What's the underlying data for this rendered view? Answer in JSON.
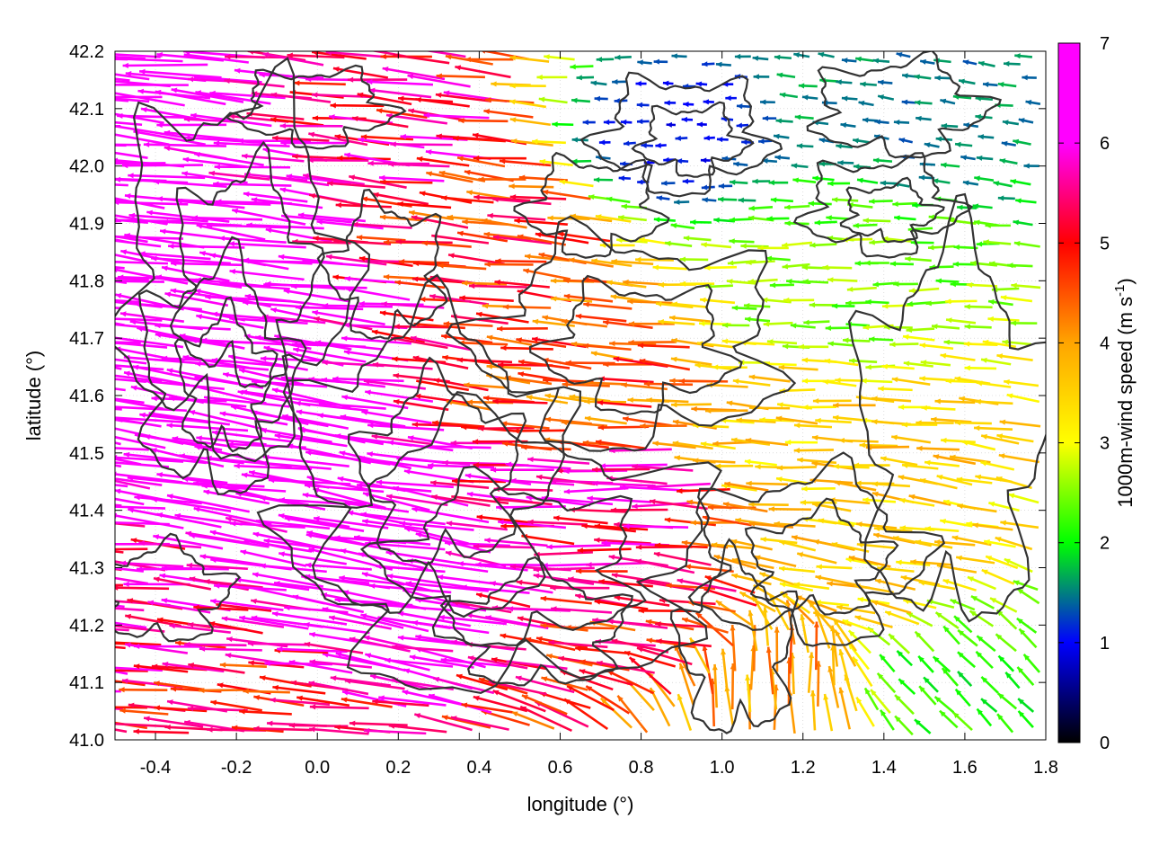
{
  "chart_data": {
    "type": "vector-field",
    "xlabel": "longitude (°)",
    "ylabel": "latitude (°)",
    "xlim": [
      -0.5,
      1.8
    ],
    "ylim": [
      41.0,
      42.2
    ],
    "x_ticks": [
      -0.4,
      -0.2,
      0.0,
      0.2,
      0.4,
      0.6,
      0.8,
      1.0,
      1.2,
      1.4,
      1.6,
      1.8
    ],
    "x_tick_labels": [
      "-0.4",
      "-0.2",
      "0.0",
      "0.2",
      "0.4",
      "0.6",
      "0.8",
      "1.0",
      "1.2",
      "1.4",
      "1.6",
      "1.8"
    ],
    "y_ticks": [
      41.0,
      41.1,
      41.2,
      41.3,
      41.4,
      41.5,
      41.6,
      41.7,
      41.8,
      41.9,
      42.0,
      42.1,
      42.2
    ],
    "y_tick_labels": [
      "41.0",
      "41.1",
      "41.2",
      "41.3",
      "41.4",
      "41.5",
      "41.6",
      "41.7",
      "41.8",
      "41.9",
      "42.0",
      "42.1",
      "42.2"
    ],
    "grid": true,
    "colorbar": {
      "label": "1000m-wind speed (m s⁻¹)",
      "label_main": "1000m-wind speed (m s",
      "label_sup": "-1",
      "label_close": ")",
      "range": [
        0,
        7
      ],
      "ticks": [
        0,
        1,
        2,
        3,
        4,
        5,
        6,
        7
      ],
      "tick_labels": [
        "0",
        "1",
        "2",
        "3",
        "4",
        "5",
        "6",
        "7"
      ],
      "colormap": [
        "#000000",
        "#0000ff",
        "#00ff00",
        "#ffff00",
        "#ffa500",
        "#ff0000",
        "#ff00ff"
      ]
    },
    "contour_color": "#333333",
    "vector_field_samples": [
      {
        "lon": -0.4,
        "lat": 42.1,
        "u": -7.0,
        "v": 0.6,
        "speed": 7.0
      },
      {
        "lon": -0.2,
        "lat": 41.8,
        "u": -7.0,
        "v": 0.8,
        "speed": 7.0
      },
      {
        "lon": 0.0,
        "lat": 41.5,
        "u": -7.0,
        "v": 1.0,
        "speed": 7.0
      },
      {
        "lon": 0.2,
        "lat": 41.3,
        "u": -7.0,
        "v": 1.2,
        "speed": 7.0
      },
      {
        "lon": -0.4,
        "lat": 41.2,
        "u": -5.8,
        "v": 0.5,
        "speed": 5.8
      },
      {
        "lon": -0.2,
        "lat": 41.05,
        "u": -5.0,
        "v": 0.4,
        "speed": 5.0
      },
      {
        "lon": 0.3,
        "lat": 42.05,
        "u": -5.5,
        "v": 0.5,
        "speed": 5.5
      },
      {
        "lon": 0.5,
        "lat": 41.9,
        "u": -4.8,
        "v": 0.5,
        "speed": 4.8
      },
      {
        "lon": 0.7,
        "lat": 41.6,
        "u": -4.5,
        "v": 0.4,
        "speed": 4.5
      },
      {
        "lon": 0.8,
        "lat": 41.4,
        "u": -5.8,
        "v": 0.2,
        "speed": 5.8
      },
      {
        "lon": 0.9,
        "lat": 41.2,
        "u": -5.0,
        "v": 0.5,
        "speed": 5.0
      },
      {
        "lon": 1.1,
        "lat": 41.1,
        "u": 0.0,
        "v": 4.0,
        "speed": 4.0
      },
      {
        "lon": 1.2,
        "lat": 41.5,
        "u": -3.5,
        "v": 0.2,
        "speed": 3.5
      },
      {
        "lon": 1.3,
        "lat": 41.8,
        "u": -2.5,
        "v": 0.0,
        "speed": 2.5
      },
      {
        "lon": 1.5,
        "lat": 42.1,
        "u": -1.5,
        "v": 0.2,
        "speed": 1.5
      },
      {
        "lon": 1.4,
        "lat": 41.3,
        "u": -3.5,
        "v": 0.5,
        "speed": 3.5
      },
      {
        "lon": 1.6,
        "lat": 41.1,
        "u": -1.5,
        "v": 1.5,
        "speed": 2.1
      },
      {
        "lon": 0.85,
        "lat": 42.05,
        "u": -1.0,
        "v": 0.0,
        "speed": 1.0
      }
    ]
  }
}
